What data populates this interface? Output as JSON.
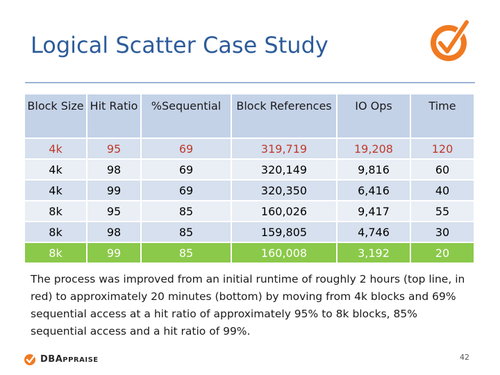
{
  "slide": {
    "title": "Logical Scatter Case Study",
    "page_number": "42"
  },
  "table": {
    "headers": [
      "Block Size",
      "Hit Ratio",
      "%Sequential",
      "Block References",
      "IO Ops",
      "Time"
    ],
    "rows": [
      [
        "4k",
        "95",
        "69",
        "319,719",
        "19,208",
        "120"
      ],
      [
        "4k",
        "98",
        "69",
        "320,149",
        "9,816",
        "60"
      ],
      [
        "4k",
        "99",
        "69",
        "320,350",
        "6,416",
        "40"
      ],
      [
        "8k",
        "95",
        "85",
        "160,026",
        "9,417",
        "55"
      ],
      [
        "8k",
        "98",
        "85",
        "159,805",
        "4,746",
        "30"
      ],
      [
        "8k",
        "99",
        "85",
        "160,008",
        "3,192",
        "20"
      ]
    ]
  },
  "description": "The process was improved from an initial runtime of roughly 2 hours (top line, in red) to approximately 20 minutes (bottom) by moving from 4k blocks and 69% sequential access at a hit ratio of approximately 95% to 8k blocks, 85% sequential access and a hit ratio of 99%.",
  "footer": {
    "brand_prefix": "DBA",
    "brand_suffix": "PPRAISE"
  },
  "colors": {
    "title": "#2d5c9a",
    "header_bg": "#c4d2e8",
    "row_dark": "#d6e0ee",
    "row_light": "#eaeff6",
    "highlight_red": "#c0392b",
    "highlight_green": "#8bc94a",
    "logo_orange": "#f07a21"
  }
}
